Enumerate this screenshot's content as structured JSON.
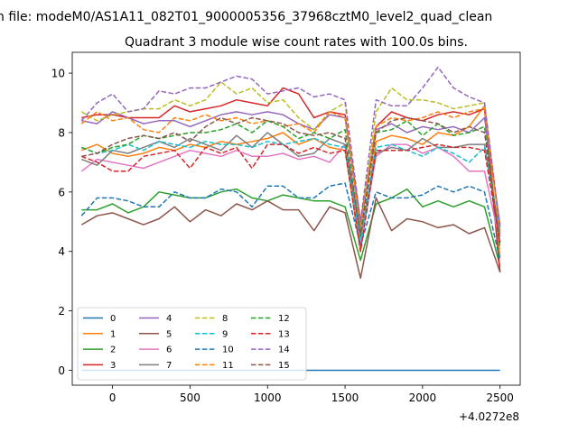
{
  "figure": {
    "suptitle": "n file: modeM0/AS1A11_082T01_9000005356_37968cztM0_level2_quad_clean",
    "offset_text": "+4.0272e8"
  },
  "chart_data": {
    "type": "line",
    "title": "Quadrant 3 module wise count rates with 100.0s bins.",
    "xlabel": "",
    "ylabel": "",
    "xlim": [
      -260,
      2630
    ],
    "ylim": [
      -0.5,
      10.7
    ],
    "xticks": [
      0,
      500,
      1000,
      1500,
      2000,
      2500
    ],
    "yticks": [
      0,
      2,
      4,
      6,
      8,
      10
    ],
    "xtick_labels": [
      "0",
      "500",
      "1000",
      "1500",
      "2000",
      "2500"
    ],
    "ytick_labels": [
      "0",
      "2",
      "4",
      "6",
      "8",
      "10"
    ],
    "grid": false,
    "legend": {
      "position": "lower-left",
      "columns": 4
    },
    "x": [
      -200,
      -100,
      0,
      100,
      200,
      300,
      400,
      500,
      600,
      700,
      800,
      900,
      1000,
      1100,
      1200,
      1300,
      1400,
      1500,
      1600,
      1700,
      1800,
      1900,
      2000,
      2100,
      2200,
      2300,
      2400,
      2500
    ],
    "series": [
      {
        "name": "0",
        "color": "#1f77b4",
        "dash": "solid",
        "values": [
          0,
          0,
          0,
          0,
          0,
          0,
          0,
          0,
          0,
          0,
          0,
          0,
          0,
          0,
          0,
          0,
          0,
          0,
          0,
          0,
          0,
          0,
          0,
          0,
          0,
          0,
          0,
          0
        ]
      },
      {
        "name": "1",
        "color": "#ff7f0e",
        "dash": "solid",
        "values": [
          7.4,
          7.6,
          7.3,
          7.2,
          7.3,
          7.5,
          7.4,
          7.6,
          7.5,
          7.7,
          7.6,
          7.7,
          7.8,
          8.0,
          7.6,
          7.8,
          7.5,
          7.4,
          4.0,
          7.7,
          7.9,
          7.8,
          7.6,
          8.0,
          7.9,
          8.2,
          8.9,
          3.8
        ]
      },
      {
        "name": "2",
        "color": "#2ca02c",
        "dash": "solid",
        "values": [
          5.4,
          5.4,
          5.6,
          5.3,
          5.5,
          6.0,
          5.9,
          5.8,
          5.8,
          6.0,
          6.1,
          5.8,
          5.7,
          5.9,
          5.8,
          5.7,
          5.7,
          5.5,
          3.7,
          5.6,
          5.8,
          6.1,
          5.5,
          5.7,
          5.5,
          5.7,
          5.5,
          3.5
        ]
      },
      {
        "name": "3",
        "color": "#d62728",
        "dash": "solid",
        "values": [
          8.5,
          8.6,
          8.6,
          8.5,
          8.5,
          8.5,
          8.9,
          8.7,
          8.8,
          8.9,
          9.1,
          9.0,
          8.9,
          9.5,
          9.3,
          8.5,
          8.7,
          8.6,
          5.0,
          8.2,
          8.7,
          8.5,
          8.4,
          8.6,
          8.7,
          8.6,
          8.8,
          3.3
        ]
      },
      {
        "name": "4",
        "color": "#9467bd",
        "dash": "solid",
        "values": [
          8.4,
          8.3,
          8.7,
          8.5,
          8.3,
          8.4,
          8.4,
          8.2,
          8.4,
          8.6,
          8.7,
          8.6,
          8.7,
          8.6,
          8.3,
          8.1,
          8.6,
          8.5,
          4.8,
          8.1,
          8.3,
          8.0,
          8.2,
          8.1,
          8.2,
          8.0,
          8.5,
          4.9
        ]
      },
      {
        "name": "5",
        "color": "#8c564b",
        "dash": "solid",
        "values": [
          4.9,
          5.2,
          5.3,
          5.1,
          4.9,
          5.1,
          5.5,
          5.0,
          5.4,
          5.2,
          5.6,
          5.4,
          5.7,
          5.4,
          5.4,
          4.7,
          5.5,
          5.3,
          3.1,
          5.8,
          4.7,
          5.1,
          5.0,
          4.8,
          4.9,
          4.6,
          4.8,
          3.3
        ]
      },
      {
        "name": "6",
        "color": "#e377c2",
        "dash": "solid",
        "values": [
          6.7,
          7.1,
          7.0,
          6.9,
          6.8,
          7.0,
          7.2,
          7.4,
          7.3,
          7.2,
          7.4,
          7.2,
          7.2,
          7.3,
          7.1,
          7.2,
          7.0,
          7.6,
          4.2,
          7.2,
          7.6,
          7.6,
          7.3,
          7.5,
          7.2,
          6.7,
          6.7,
          4.3
        ]
      },
      {
        "name": "7",
        "color": "#7f7f7f",
        "dash": "solid",
        "values": [
          7.1,
          6.9,
          7.4,
          7.3,
          7.5,
          7.7,
          7.5,
          7.8,
          7.6,
          7.4,
          7.9,
          7.5,
          8.0,
          7.6,
          7.2,
          7.3,
          7.8,
          7.6,
          4.5,
          7.3,
          7.5,
          7.4,
          7.8,
          7.5,
          7.5,
          7.6,
          7.6,
          4.6
        ]
      },
      {
        "name": "8",
        "color": "#bcbd22",
        "dash": "dashed",
        "values": [
          8.7,
          8.4,
          8.6,
          8.7,
          8.8,
          8.8,
          9.1,
          8.9,
          9.1,
          9.7,
          9.3,
          9.5,
          9.0,
          9.1,
          8.5,
          8.1,
          8.7,
          9.0,
          4.7,
          8.7,
          9.5,
          9.1,
          9.1,
          9.0,
          8.8,
          8.9,
          9.0,
          4.6
        ]
      },
      {
        "name": "9",
        "color": "#17becf",
        "dash": "dashed",
        "values": [
          7.5,
          7.3,
          7.4,
          7.6,
          7.4,
          7.7,
          7.6,
          7.5,
          7.7,
          7.6,
          7.6,
          7.5,
          7.7,
          7.6,
          7.7,
          7.8,
          7.6,
          7.5,
          4.4,
          7.5,
          7.6,
          7.4,
          7.2,
          7.5,
          7.3,
          7.0,
          7.5,
          4.5
        ]
      },
      {
        "name": "10",
        "color": "#1f77b4",
        "dash": "dashed",
        "values": [
          5.2,
          5.8,
          5.8,
          5.7,
          5.5,
          5.5,
          6.0,
          5.8,
          5.8,
          6.1,
          6.0,
          5.5,
          6.2,
          6.2,
          5.8,
          5.8,
          6.2,
          6.3,
          4.2,
          6.0,
          5.8,
          5.8,
          5.9,
          6.2,
          6.0,
          6.2,
          6.0,
          3.7
        ]
      },
      {
        "name": "11",
        "color": "#ff7f0e",
        "dash": "dashed",
        "values": [
          8.3,
          8.7,
          8.4,
          8.5,
          8.1,
          8.0,
          8.5,
          8.4,
          8.6,
          8.4,
          8.5,
          8.3,
          8.4,
          8.2,
          8.3,
          8.0,
          8.7,
          8.5,
          4.9,
          8.2,
          8.5,
          8.4,
          8.5,
          8.7,
          8.5,
          8.7,
          8.8,
          4.7
        ]
      },
      {
        "name": "12",
        "color": "#2ca02c",
        "dash": "dashed",
        "values": [
          7.5,
          7.3,
          7.5,
          7.6,
          7.9,
          7.8,
          7.9,
          8.0,
          8.0,
          8.1,
          8.3,
          8.0,
          8.4,
          8.2,
          7.8,
          8.0,
          7.8,
          8.1,
          4.5,
          8.0,
          8.1,
          8.4,
          7.9,
          8.3,
          7.9,
          8.0,
          8.2,
          4.1
        ]
      },
      {
        "name": "13",
        "color": "#d62728",
        "dash": "dashed",
        "values": [
          7.2,
          7.0,
          6.7,
          6.7,
          7.2,
          7.3,
          7.4,
          6.8,
          7.5,
          7.3,
          7.5,
          6.8,
          7.6,
          7.6,
          7.3,
          7.5,
          7.3,
          7.4,
          4.0,
          7.4,
          7.4,
          7.4,
          7.5,
          7.6,
          7.5,
          7.5,
          7.4,
          4.3
        ]
      },
      {
        "name": "14",
        "color": "#9467bd",
        "dash": "dashed",
        "values": [
          8.4,
          9.0,
          9.3,
          8.7,
          8.8,
          9.4,
          9.3,
          9.5,
          9.5,
          9.7,
          9.9,
          9.8,
          9.3,
          9.4,
          9.5,
          9.2,
          9.3,
          9.1,
          5.0,
          9.1,
          8.9,
          8.9,
          9.5,
          10.2,
          9.5,
          9.2,
          9.0,
          4.8
        ]
      },
      {
        "name": "15",
        "color": "#8c564b",
        "dash": "dashed",
        "values": [
          7.2,
          7.3,
          7.6,
          7.8,
          7.9,
          7.8,
          8.0,
          7.7,
          8.2,
          8.5,
          8.3,
          8.5,
          8.4,
          8.3,
          8.0,
          7.9,
          8.0,
          7.8,
          4.6,
          8.0,
          8.4,
          8.5,
          8.4,
          8.3,
          8.0,
          8.2,
          8.0,
          4.3
        ]
      }
    ]
  }
}
